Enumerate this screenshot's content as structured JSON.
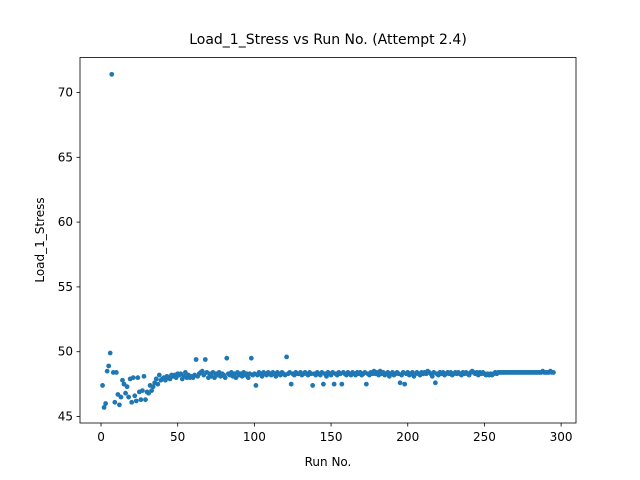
{
  "chart_data": {
    "type": "scatter",
    "title": "Load_1_Stress vs Run No. (Attempt 2.4)",
    "x_label": "Run No.",
    "y_label": "Load_1_Stress",
    "xlim": [
      -13.7,
      309.7
    ],
    "ylim": [
      44.5,
      72.7
    ],
    "xticks": [
      0,
      50,
      100,
      150,
      200,
      250,
      300
    ],
    "yticks": [
      45,
      50,
      55,
      60,
      65,
      70
    ],
    "grid": false,
    "series": [
      {
        "color": "#1f77b4",
        "x": [
          1,
          2,
          3,
          4,
          5,
          6,
          7,
          8,
          9,
          10,
          11,
          12,
          13,
          14,
          15,
          16,
          17,
          18,
          19,
          20,
          21,
          22,
          23,
          24,
          25,
          26,
          27,
          28,
          29,
          30,
          31,
          32,
          33,
          34,
          35,
          36,
          37,
          38,
          39,
          40,
          41,
          42,
          43,
          44,
          45,
          46,
          47,
          48,
          49,
          50,
          51,
          52,
          53,
          54,
          55,
          56,
          57,
          58,
          59,
          60,
          61,
          62,
          63,
          64,
          65,
          66,
          67,
          68,
          69,
          70,
          71,
          72,
          73,
          74,
          75,
          76,
          77,
          78,
          79,
          80,
          81,
          82,
          83,
          84,
          85,
          86,
          87,
          88,
          89,
          90,
          91,
          92,
          93,
          94,
          95,
          96,
          97,
          98,
          99,
          100,
          101,
          102,
          103,
          104,
          105,
          106,
          107,
          108,
          109,
          110,
          111,
          112,
          113,
          114,
          115,
          116,
          117,
          118,
          119,
          120,
          121,
          122,
          123,
          124,
          125,
          126,
          127,
          128,
          129,
          130,
          131,
          132,
          133,
          134,
          135,
          136,
          137,
          138,
          139,
          140,
          141,
          142,
          143,
          144,
          145,
          146,
          147,
          148,
          149,
          150,
          151,
          152,
          153,
          154,
          155,
          156,
          157,
          158,
          159,
          160,
          161,
          162,
          163,
          164,
          165,
          166,
          167,
          168,
          169,
          170,
          171,
          172,
          173,
          174,
          175,
          176,
          177,
          178,
          179,
          180,
          181,
          182,
          183,
          184,
          185,
          186,
          187,
          188,
          189,
          190,
          191,
          192,
          193,
          194,
          195,
          196,
          197,
          198,
          199,
          200,
          201,
          202,
          203,
          204,
          205,
          206,
          207,
          208,
          209,
          210,
          211,
          212,
          213,
          214,
          215,
          216,
          217,
          218,
          219,
          220,
          221,
          222,
          223,
          224,
          225,
          226,
          227,
          228,
          229,
          230,
          231,
          232,
          233,
          234,
          235,
          236,
          237,
          238,
          239,
          240,
          241,
          242,
          243,
          244,
          245,
          246,
          247,
          248,
          249,
          250,
          251,
          252,
          253,
          254,
          255,
          256,
          257,
          258,
          259,
          260,
          261,
          262,
          263,
          264,
          265,
          266,
          267,
          268,
          269,
          270,
          271,
          272,
          273,
          274,
          275,
          276,
          277,
          278,
          279,
          280,
          281,
          282,
          283,
          284,
          285,
          286,
          287,
          288,
          289,
          290,
          291,
          292,
          293,
          294,
          295
        ],
        "values": [
          47.4,
          45.7,
          46.0,
          48.5,
          48.9,
          49.9,
          71.4,
          48.4,
          46.1,
          48.4,
          46.7,
          45.9,
          46.5,
          47.8,
          47.5,
          46.8,
          47.3,
          46.5,
          47.9,
          46.1,
          48.0,
          46.6,
          46.2,
          48.0,
          46.9,
          46.3,
          47.0,
          48.1,
          46.3,
          46.9,
          46.8,
          47.4,
          47.0,
          47.3,
          47.6,
          47.9,
          47.5,
          48.2,
          47.8,
          47.9,
          48.0,
          47.8,
          48.1,
          48.0,
          47.9,
          48.2,
          48.1,
          48.2,
          48.0,
          48.3,
          48.2,
          48.3,
          47.9,
          48.1,
          48.4,
          48.0,
          48.2,
          48.0,
          48.1,
          48.0,
          48.2,
          49.4,
          48.1,
          48.3,
          48.4,
          48.5,
          48.2,
          49.4,
          48.4,
          48.0,
          48.3,
          48.1,
          48.4,
          48.0,
          48.3,
          48.2,
          48.4,
          48.1,
          48.3,
          48.2,
          48.0,
          49.5,
          48.3,
          48.2,
          48.4,
          48.1,
          48.3,
          48.0,
          48.4,
          48.2,
          48.3,
          48.1,
          48.4,
          48.2,
          48.3,
          48.0,
          48.3,
          49.5,
          48.2,
          48.3,
          47.4,
          48.2,
          48.4,
          48.3,
          48.1,
          48.4,
          48.3,
          48.2,
          48.4,
          48.3,
          48.2,
          48.4,
          48.3,
          48.1,
          48.4,
          48.3,
          48.2,
          48.4,
          48.3,
          48.2,
          49.6,
          48.3,
          48.4,
          47.5,
          48.3,
          48.2,
          48.4,
          48.3,
          48.3,
          48.4,
          48.2,
          48.3,
          48.4,
          48.3,
          48.2,
          48.4,
          48.3,
          47.4,
          48.3,
          48.2,
          48.4,
          48.3,
          48.2,
          48.4,
          47.5,
          48.3,
          48.1,
          48.4,
          48.3,
          48.2,
          48.4,
          47.5,
          48.3,
          48.2,
          48.4,
          48.3,
          47.5,
          48.4,
          48.3,
          48.2,
          48.4,
          48.3,
          48.2,
          48.4,
          48.3,
          48.2,
          48.4,
          48.3,
          48.4,
          48.2,
          48.3,
          48.4,
          47.5,
          48.3,
          48.2,
          48.4,
          48.3,
          48.5,
          48.3,
          48.4,
          48.2,
          48.5,
          48.3,
          48.4,
          48.2,
          48.3,
          48.4,
          48.1,
          48.3,
          48.4,
          48.2,
          48.3,
          48.4,
          48.3,
          47.6,
          48.2,
          48.4,
          47.5,
          48.3,
          48.4,
          48.2,
          48.3,
          48.4,
          48.1,
          48.3,
          48.4,
          48.3,
          48.2,
          48.4,
          48.3,
          48.4,
          48.3,
          48.5,
          48.4,
          48.3,
          48.1,
          48.4,
          47.6,
          48.3,
          48.2,
          48.4,
          48.3,
          48.4,
          48.2,
          48.3,
          48.4,
          48.3,
          48.4,
          48.2,
          48.3,
          48.4,
          48.3,
          48.4,
          48.3,
          48.2,
          48.4,
          48.3,
          48.4,
          48.3,
          48.2,
          48.4,
          48.5,
          48.4,
          48.3,
          48.4,
          48.2,
          48.4,
          48.3,
          48.4,
          48.3,
          48.2,
          48.3,
          48.2,
          48.3,
          48.2,
          48.3,
          48.4,
          48.3,
          48.4,
          48.4,
          48.4,
          48.4,
          48.4,
          48.4,
          48.4,
          48.4,
          48.4,
          48.4,
          48.4,
          48.4,
          48.4,
          48.4,
          48.4,
          48.4,
          48.4,
          48.4,
          48.4,
          48.4,
          48.4,
          48.4,
          48.4,
          48.4,
          48.4,
          48.4,
          48.4,
          48.4,
          48.4,
          48.5,
          48.4,
          48.4,
          48.4,
          48.4,
          48.5,
          48.4,
          48.4
        ]
      }
    ]
  }
}
